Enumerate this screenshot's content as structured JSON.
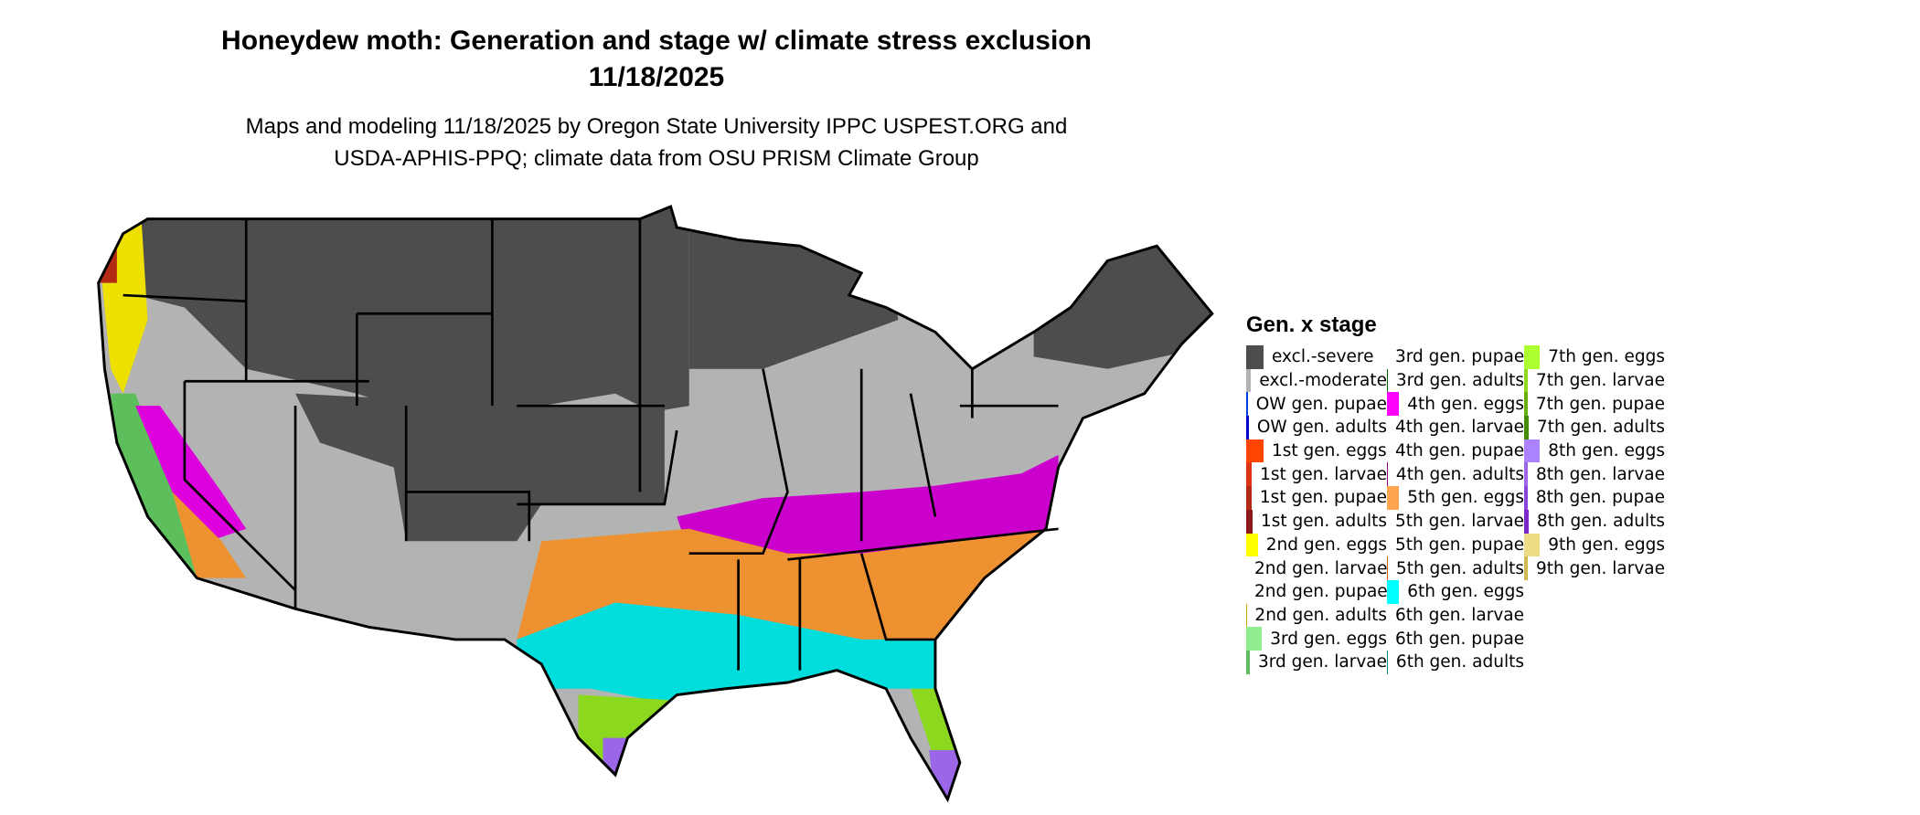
{
  "title": {
    "line1": "Honeydew moth: Generation and stage w/ climate stress exclusion",
    "line2": "11/18/2025"
  },
  "subtitle": {
    "line1": "Maps and modeling 11/18/2025 by Oregon State University IPPC USPEST.ORG and",
    "line2": "USDA-APHIS-PPQ; climate data from OSU PRISM Climate Group"
  },
  "legend": {
    "title": "Gen. x stage",
    "items": [
      {
        "label": "excl.-severe",
        "color": "#4d4d4d"
      },
      {
        "label": "excl.-moderate",
        "color": "#b3b3b3"
      },
      {
        "label": "OW gen. pupae",
        "color": "#0040dd"
      },
      {
        "label": "OW gen. adults",
        "color": "#0000cc"
      },
      {
        "label": "1st gen. eggs",
        "color": "#ff4500"
      },
      {
        "label": "1st gen. larvae",
        "color": "#dd3311"
      },
      {
        "label": "1st gen. pupae",
        "color": "#b22a14"
      },
      {
        "label": "1st gen. adults",
        "color": "#8b1a1a"
      },
      {
        "label": "2nd gen. eggs",
        "color": "#ffff00"
      },
      {
        "label": "2nd gen. larvae",
        "color": "#eee000"
      },
      {
        "label": "2nd gen. pupae",
        "color": "#ddcc00"
      },
      {
        "label": "2nd gen. adults",
        "color": "#ccaa00"
      },
      {
        "label": "3rd gen. eggs",
        "color": "#90ee90"
      },
      {
        "label": "3rd gen. larvae",
        "color": "#5cbf5c"
      },
      {
        "label": "3rd gen. pupae",
        "color": "#2e8b37"
      },
      {
        "label": "3rd gen. adults",
        "color": "#006400"
      },
      {
        "label": "4th gen. eggs",
        "color": "#ff00ff"
      },
      {
        "label": "4th gen. larvae",
        "color": "#dd00dd"
      },
      {
        "label": "4th gen. pupae",
        "color": "#b000b0"
      },
      {
        "label": "4th gen. adults",
        "color": "#8b008b"
      },
      {
        "label": "5th gen. eggs",
        "color": "#ffa54f"
      },
      {
        "label": "5th gen. larvae",
        "color": "#ee9130"
      },
      {
        "label": "5th gen. pupae",
        "color": "#dd7a1a"
      },
      {
        "label": "5th gen. adults",
        "color": "#cd6600"
      },
      {
        "label": "6th gen. eggs",
        "color": "#00ffff"
      },
      {
        "label": "6th gen. larvae",
        "color": "#00dddd"
      },
      {
        "label": "6th gen. pupae",
        "color": "#00b2b2"
      },
      {
        "label": "6th gen. adults",
        "color": "#008b8b"
      },
      {
        "label": "7th gen. eggs",
        "color": "#adff2f"
      },
      {
        "label": "7th gen. larvae",
        "color": "#8bd81f"
      },
      {
        "label": "7th gen. pupae",
        "color": "#66b010"
      },
      {
        "label": "7th gen. adults",
        "color": "#458b00"
      },
      {
        "label": "8th gen. eggs",
        "color": "#ab82ff"
      },
      {
        "label": "8th gen. larvae",
        "color": "#9b66e8"
      },
      {
        "label": "8th gen. pupae",
        "color": "#8a45d8"
      },
      {
        "label": "8th gen. adults",
        "color": "#7a28c8"
      },
      {
        "label": "9th gen. eggs",
        "color": "#eedc82"
      },
      {
        "label": "9th gen. larvae",
        "color": "#cdba55"
      }
    ]
  }
}
